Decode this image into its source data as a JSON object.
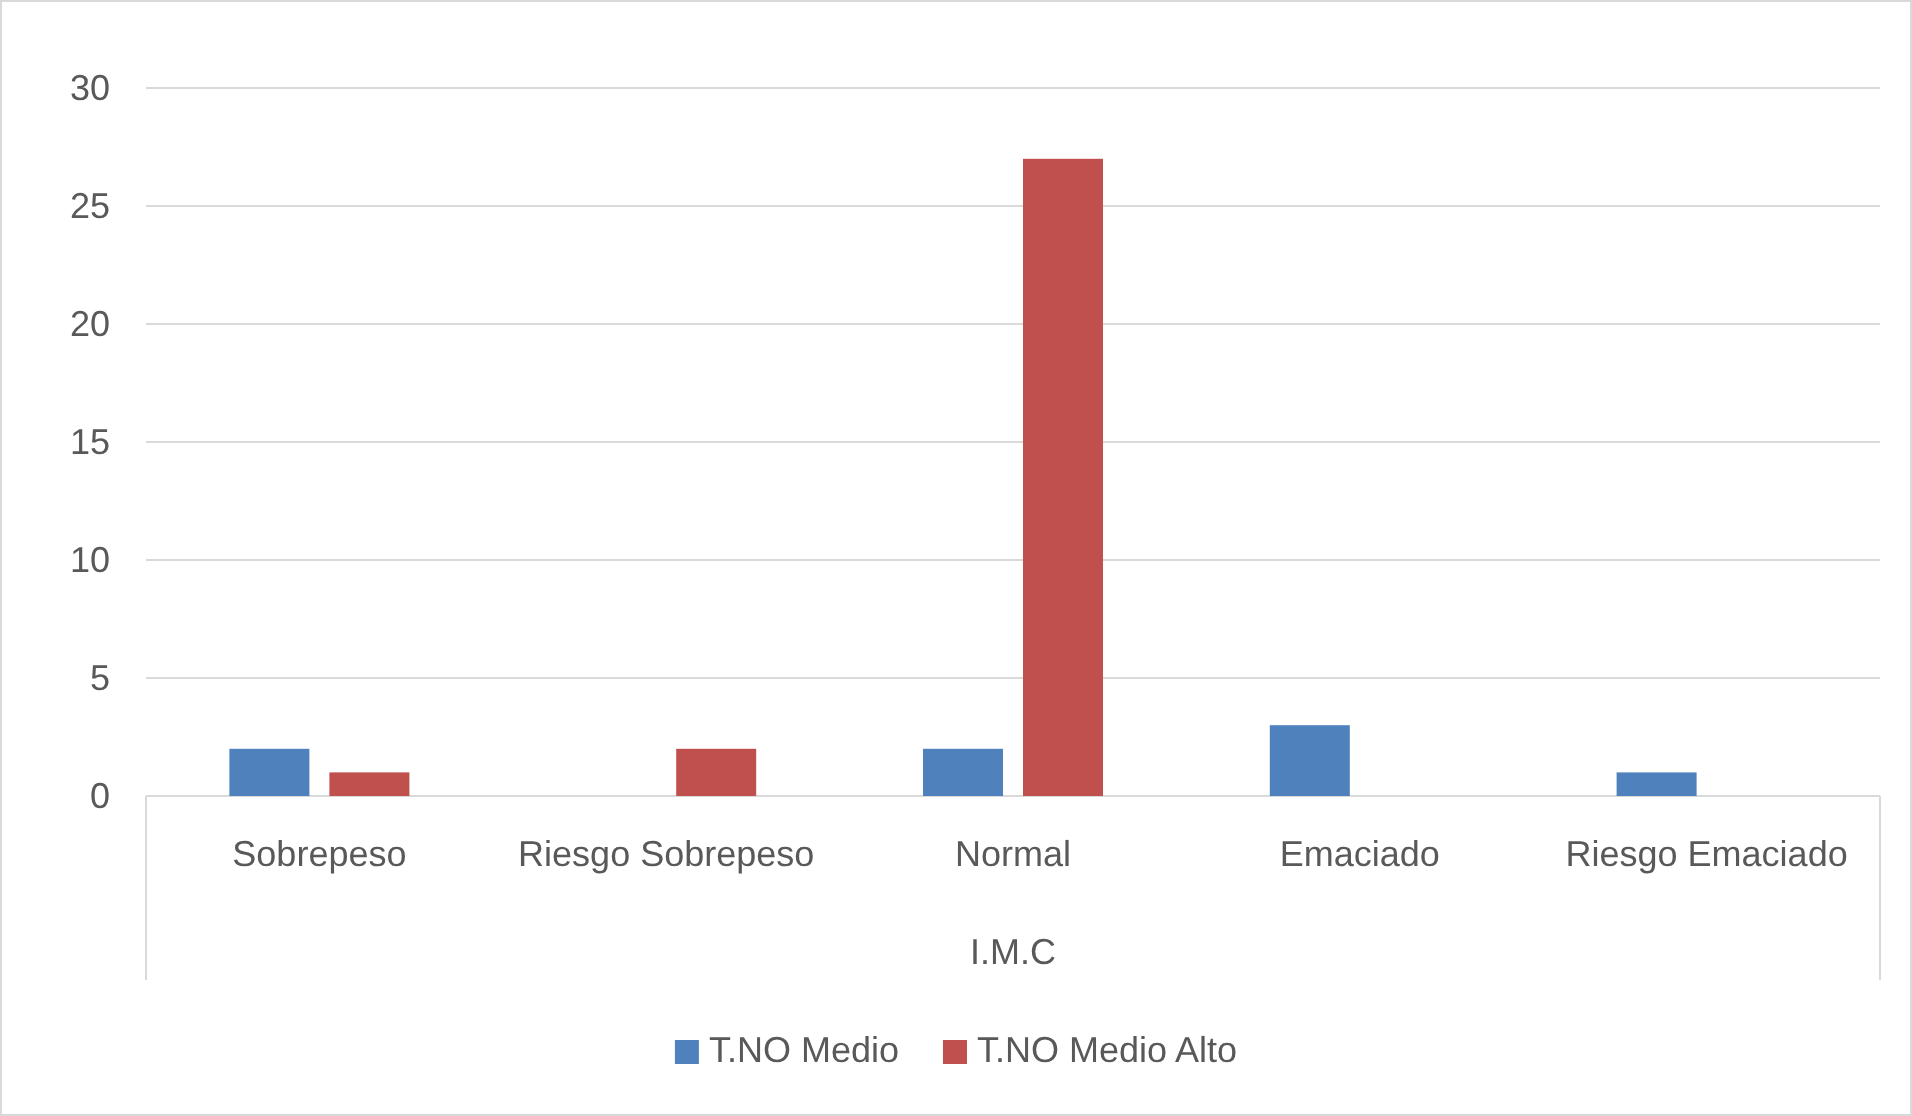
{
  "chart_data": {
    "type": "bar",
    "xlabel": "I.M.C",
    "categories": [
      "Sobrepeso",
      "Riesgo Sobrepeso",
      "Normal",
      "Emaciado",
      "Riesgo Emaciado"
    ],
    "series": [
      {
        "name": "T.NO Medio",
        "color": "#4f81bd",
        "values": [
          2,
          0,
          2,
          3,
          1
        ]
      },
      {
        "name": "T.NO Medio Alto",
        "color": "#c0504d",
        "values": [
          1,
          2,
          27,
          0,
          0
        ]
      }
    ],
    "ylim": [
      0,
      30
    ],
    "yticks": [
      0,
      5,
      10,
      15,
      20,
      25,
      30
    ],
    "grid": "y",
    "legend": "bottom"
  }
}
